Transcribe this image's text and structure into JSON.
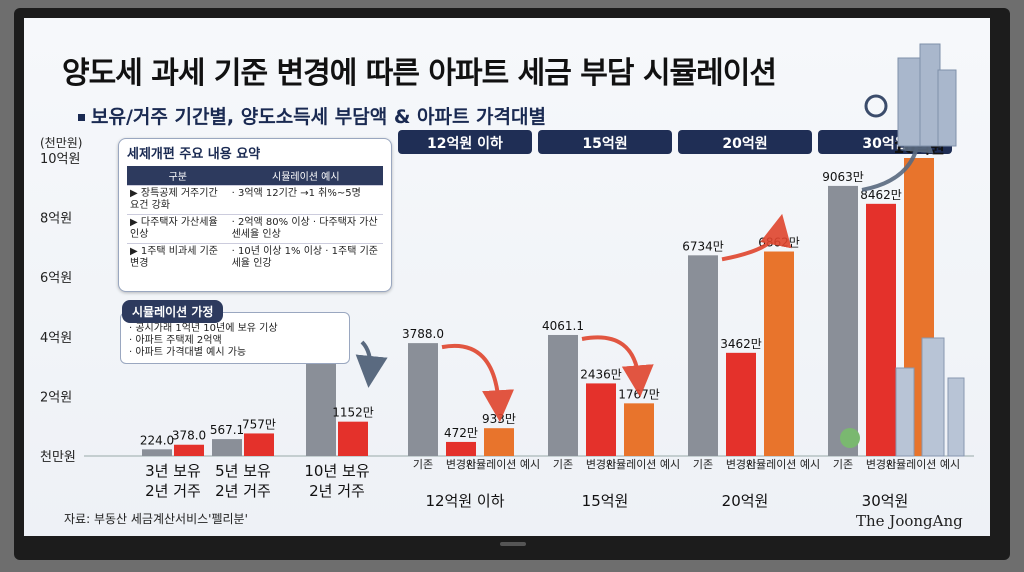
{
  "title": "양도세 과세 기준 변경에 따른 아파트 세금 부담 시뮬레이션",
  "subtitle": "보유/거주 기간별, 양도소득세 부담액 & 아파트 가격대별",
  "unit_label": "(천만원)",
  "summary_box": {
    "title": "세제개편 주요 내용 요약",
    "headers": [
      "구분",
      "시뮬레이션 예시"
    ],
    "rows": [
      {
        "label": "▶ 장특공제 거주기간 요건 강화",
        "example": "· 3억액 12기간 →1 취%~5명"
      },
      {
        "label": "▶ 다주택자 가산세율 인상",
        "example": "· 2억액 80% 이상 · 다주택자 가산센세율 인상"
      },
      {
        "label": "▶ 1주택 비과세 기준 변경",
        "example": "· 10년 이상 1% 이상 · 1주택 기준 세율 인강"
      }
    ]
  },
  "assumption_box": {
    "title": "시뮬레이션 가정",
    "items": [
      "· 공시가래 1억년 10년에 보유 기상",
      "· 아파트 주택제 2억액",
      "· 아파트 가격대별 예시 가능"
    ]
  },
  "source": "자료: 부동산 세금계산서비스'펠리분'",
  "logo": "The JoongAng",
  "colors": {
    "gray": "#8a8f98",
    "red": "#e4312b",
    "orange": "#e8742c",
    "navy": "#1f2e55",
    "arrow_red": "#e0452e",
    "arrow_gray": "#5a6a80"
  },
  "chart_data": {
    "type": "bar",
    "ylabel": "(천만원)",
    "ylim": [
      0,
      10000
    ],
    "y_ticks": [
      {
        "value": 0,
        "label": "천만원"
      },
      {
        "value": 2000,
        "label": "2억원"
      },
      {
        "value": 4000,
        "label": "4억원"
      },
      {
        "value": 6000,
        "label": "6억원"
      },
      {
        "value": 8000,
        "label": "8억원"
      },
      {
        "value": 10000,
        "label": "10억원"
      }
    ],
    "left_groups": [
      {
        "label": [
          "3년 보유",
          "2년 거주"
        ],
        "bars": [
          {
            "value": 224.0,
            "label": "224.0",
            "color": "gray"
          },
          {
            "value": 378.0,
            "label": "378.0",
            "color": "red"
          }
        ]
      },
      {
        "label": [
          "5년 보유",
          "2년 거주"
        ],
        "bars": [
          {
            "value": 567.1,
            "label": "567.1",
            "color": "gray"
          },
          {
            "value": 757,
            "label": "757만",
            "color": "red"
          }
        ]
      },
      {
        "label": [
          "10년 보유",
          "2년 거주"
        ],
        "bars": [
          {
            "value": 3286.3,
            "label": "3286.3",
            "color": "gray"
          },
          {
            "value": 1152,
            "label": "1152만",
            "color": "red"
          }
        ]
      }
    ],
    "price_groups": [
      {
        "header": "12억원 이하",
        "label": "12억원 이하",
        "bars": [
          {
            "category": "기존",
            "value": 3788.0,
            "label": "3788.0",
            "color": "gray"
          },
          {
            "category": "변경안",
            "value": 472,
            "label": "472만",
            "color": "red"
          },
          {
            "category": "시뮬레이션 예시",
            "value": 933,
            "label": "933만",
            "color": "orange"
          }
        ]
      },
      {
        "header": "15억원",
        "label": "15억원",
        "bars": [
          {
            "category": "기존",
            "value": 4061.1,
            "label": "4061.1",
            "color": "gray"
          },
          {
            "category": "변경안",
            "value": 2436,
            "label": "2436만",
            "color": "red"
          },
          {
            "category": "시뮬레이션 예시",
            "value": 1767,
            "label": "1767만",
            "color": "orange"
          }
        ]
      },
      {
        "header": "20억원",
        "label": "20억원",
        "bars": [
          {
            "category": "기존",
            "value": 6734,
            "label": "6734만",
            "color": "gray"
          },
          {
            "category": "변경안",
            "value": 3462,
            "label": "3462만",
            "color": "red"
          },
          {
            "category": "시뮬레이션 예시",
            "value": 6862,
            "label": "6862만",
            "color": "orange"
          }
        ]
      },
      {
        "header": "30억원",
        "label": "30억원",
        "bars": [
          {
            "category": "기존",
            "value": 9063,
            "label": "9063만",
            "color": "gray"
          },
          {
            "category": "변경안",
            "value": 8462,
            "label": "8462만",
            "color": "red"
          },
          {
            "category": "시뮬레이션 예시",
            "value": 10000,
            "label": "10억원",
            "color": "orange"
          }
        ]
      }
    ],
    "legend": "none",
    "grid": false
  }
}
